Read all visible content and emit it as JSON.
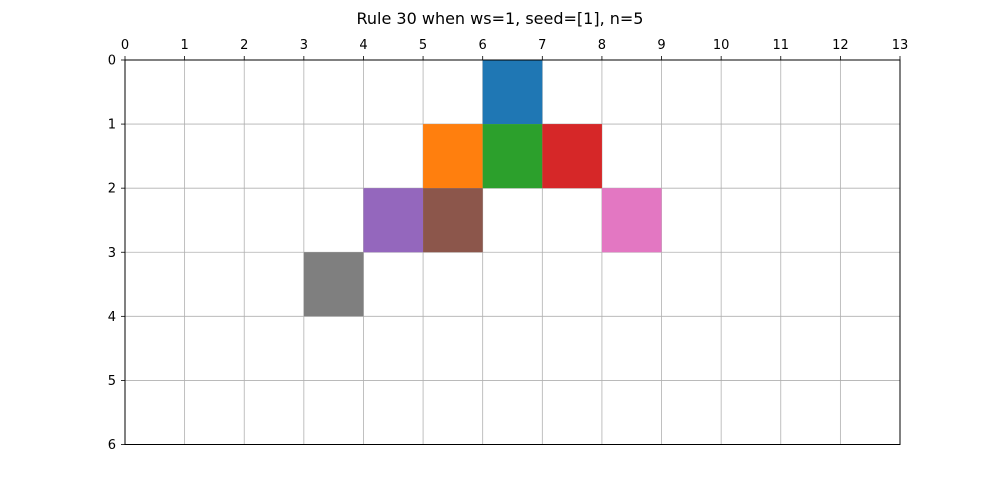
{
  "chart_data": {
    "type": "heatmap",
    "title": "Rule 30 when ws=1, seed=[1], n=5",
    "xlabel": "",
    "ylabel": "",
    "xlim": [
      0,
      13
    ],
    "ylim": [
      0,
      6
    ],
    "x_tick_position": "top",
    "y_axis_inverted": true,
    "grid": true,
    "x_ticks": [
      "0",
      "1",
      "2",
      "3",
      "4",
      "5",
      "6",
      "7",
      "8",
      "9",
      "10",
      "11",
      "12",
      "13"
    ],
    "y_ticks": [
      "0",
      "1",
      "2",
      "3",
      "4",
      "5",
      "6"
    ],
    "cells": [
      {
        "x": 6,
        "y": 0,
        "color": "#1f77b4"
      },
      {
        "x": 5,
        "y": 1,
        "color": "#ff7f0e"
      },
      {
        "x": 6,
        "y": 1,
        "color": "#2ca02c"
      },
      {
        "x": 7,
        "y": 1,
        "color": "#d62728"
      },
      {
        "x": 4,
        "y": 2,
        "color": "#9467bd"
      },
      {
        "x": 5,
        "y": 2,
        "color": "#8c564b"
      },
      {
        "x": 8,
        "y": 2,
        "color": "#e377c2"
      },
      {
        "x": 3,
        "y": 3,
        "color": "#7f7f7f"
      }
    ],
    "colors": {
      "grid": "#b0b0b0",
      "axis": "#000000"
    }
  }
}
